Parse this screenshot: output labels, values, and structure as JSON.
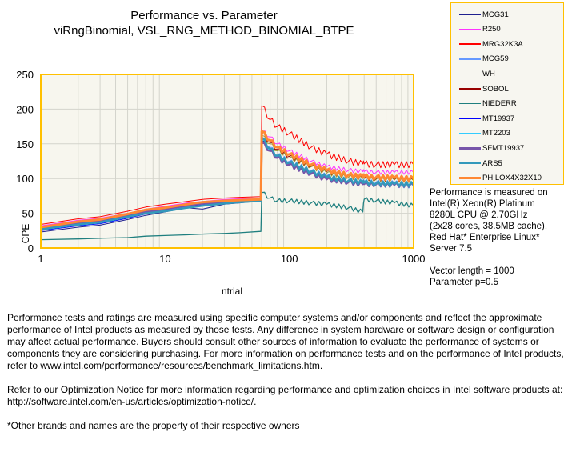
{
  "title": {
    "line1": "Performance vs. Parameter",
    "line2": "viRngBinomial, VSL_RNG_METHOD_BINOMIAL_BTPE"
  },
  "chart_data": {
    "type": "line",
    "title": "Performance vs. Parameter viRngBinomial, VSL_RNG_METHOD_BINOMIAL_BTPE",
    "xlabel": "ntrial",
    "ylabel": "CPE",
    "xscale": "log",
    "xlim": [
      1,
      1000
    ],
    "ylim": [
      0,
      250
    ],
    "xticks": [
      "1",
      "10",
      "100",
      "1000"
    ],
    "yticks": [
      "0",
      "50",
      "100",
      "150",
      "200",
      "250"
    ],
    "grid": true,
    "legend_position": "top-right",
    "x": [
      1,
      2,
      3,
      5,
      7,
      10,
      15,
      20,
      30,
      40,
      59,
      60,
      70,
      80,
      100,
      150,
      200,
      300,
      390,
      400,
      500,
      700,
      1000
    ],
    "series": [
      {
        "name": "MCG31",
        "color": "#1f1f8f",
        "width": 1,
        "values": [
          23,
          30,
          33,
          41,
          47,
          52,
          58,
          56,
          63,
          65,
          68,
          155,
          140,
          130,
          120,
          108,
          100,
          95,
          92,
          92,
          91,
          90,
          90
        ]
      },
      {
        "name": "R250",
        "color": "#ff33ff",
        "width": 1,
        "values": [
          32,
          40,
          43,
          50,
          56,
          60,
          65,
          67,
          70,
          71,
          72,
          170,
          160,
          150,
          140,
          125,
          117,
          112,
          110,
          110,
          109,
          109,
          109
        ]
      },
      {
        "name": "MRG32K3A",
        "color": "#ff0000",
        "width": 1,
        "values": [
          34,
          42,
          45,
          53,
          59,
          63,
          67,
          70,
          72,
          73,
          74,
          205,
          185,
          175,
          165,
          145,
          135,
          125,
          121,
          121,
          120,
          120,
          120
        ]
      },
      {
        "name": "MCG59",
        "color": "#6699ff",
        "width": 1,
        "values": [
          27,
          34,
          37,
          45,
          51,
          55,
          61,
          63,
          66,
          67,
          69,
          160,
          145,
          135,
          125,
          112,
          104,
          98,
          96,
          96,
          95,
          94,
          93
        ]
      },
      {
        "name": "WH",
        "color": "#999933",
        "width": 1,
        "values": [
          29,
          36,
          39,
          47,
          53,
          57,
          62,
          65,
          67,
          68,
          70,
          162,
          150,
          140,
          130,
          117,
          108,
          102,
          100,
          100,
          99,
          98,
          97
        ]
      },
      {
        "name": "SOBOL",
        "color": "#990000",
        "width": 1,
        "values": [
          30,
          37,
          40,
          48,
          54,
          58,
          63,
          66,
          68,
          69,
          70,
          165,
          152,
          142,
          132,
          118,
          110,
          104,
          101,
          101,
          100,
          99,
          98
        ]
      },
      {
        "name": "NIEDERR",
        "color": "#1f7f7f",
        "width": 1.3,
        "values": [
          12,
          13,
          14,
          15,
          17,
          18,
          19,
          20,
          21,
          22,
          24,
          80,
          72,
          68,
          68,
          65,
          63,
          58,
          52,
          70,
          68,
          65,
          61
        ]
      },
      {
        "name": "MT19937",
        "color": "#0000ff",
        "width": 1,
        "values": [
          25,
          32,
          35,
          43,
          49,
          54,
          60,
          62,
          65,
          66,
          68,
          157,
          142,
          132,
          122,
          110,
          101,
          96,
          93,
          93,
          92,
          91,
          90
        ]
      },
      {
        "name": "MT2203",
        "color": "#33ccff",
        "width": 1,
        "values": [
          26,
          33,
          36,
          44,
          50,
          54,
          60,
          60,
          64,
          66,
          68,
          156,
          141,
          131,
          121,
          109,
          100,
          95,
          92,
          92,
          91,
          90,
          89
        ]
      },
      {
        "name": "SFMT19937",
        "color": "#7755aa",
        "width": 2.5,
        "values": [
          28,
          35,
          38,
          46,
          52,
          56,
          61,
          64,
          66,
          67,
          69,
          152,
          140,
          130,
          120,
          107,
          99,
          95,
          92,
          92,
          92,
          91,
          91
        ]
      },
      {
        "name": "ARS5",
        "color": "#3399bb",
        "width": 2.5,
        "values": [
          27,
          34,
          37,
          45,
          50,
          53,
          58,
          61,
          64,
          66,
          68,
          158,
          143,
          133,
          123,
          110,
          102,
          97,
          94,
          94,
          93,
          92,
          92
        ]
      },
      {
        "name": "PHILOX4X32X10",
        "color": "#ff8833",
        "width": 3,
        "values": [
          30,
          38,
          41,
          49,
          55,
          58,
          63,
          66,
          68,
          69,
          70,
          168,
          155,
          145,
          135,
          120,
          112,
          105,
          103,
          103,
          102,
          101,
          100
        ]
      }
    ]
  },
  "info": {
    "lines": [
      "Performance is measured on",
      "Intel(R) Xeon(R) Platinum",
      "8280L CPU @ 2.70GHz",
      "(2x28 cores, 38.5MB cache),",
      "Red Hat* Enterprise Linux*",
      "Server 7.5",
      "",
      "Vector length = 1000",
      "Parameter p=0.5"
    ]
  },
  "footer": {
    "p1": "Performance tests and ratings are measured using specific computer systems and/or components and reflect the approximate performance of Intel products as measured by those tests. Any difference in system hardware or software design or configuration may affect actual performance. Buyers should consult other sources of information to evaluate the performance of systems or components they are considering purchasing. For more information on performance tests and on the performance of Intel products, refer to www.intel.com/performance/resources/benchmark_limitations.htm.",
    "p2": "Refer to our Optimization Notice for more information regarding performance and optimization choices in Intel software products at: http://software.intel.com/en-us/articles/optimization-notice/.",
    "p3": "*Other brands and names are the property of their respective owners"
  }
}
